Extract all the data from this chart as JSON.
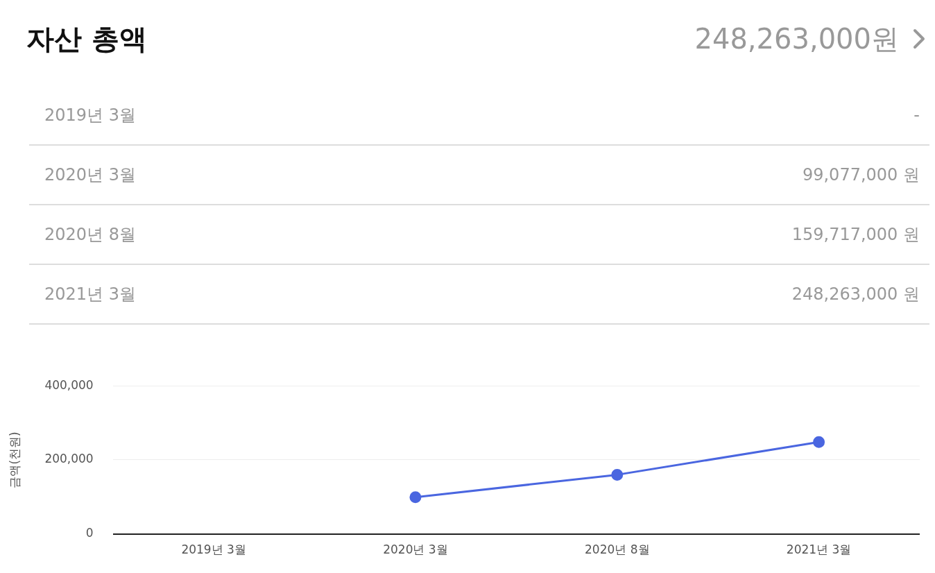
{
  "chart_data": [
    {
      "type": "other",
      "title": "자산 총액",
      "subtitle": "248,263,000원",
      "categories": [
        "2019년 3월",
        "2020년 3월",
        "2020년 8월",
        "2021년 3월"
      ],
      "series": [
        {
          "values": [
            null,
            99077000,
            159717000,
            248263000
          ],
          "value_labels": [
            "-",
            "99,077,000 원",
            "159,717,000 원",
            "248,263,000 원"
          ]
        }
      ]
    },
    {
      "type": "line",
      "ylabel": "금액(천원)",
      "categories": [
        "2019년 3월",
        "2020년 3월",
        "2020년 8월",
        "2021년 3월"
      ],
      "series": [
        {
          "color": "#4a66e0",
          "values": [
            null,
            99077,
            159717,
            248263
          ]
        }
      ],
      "ylim": [
        0,
        400000
      ],
      "yticks": [
        0,
        {
          "value": 200000,
          "label": "200,000"
        },
        {
          "value": 400000,
          "label": "400,000"
        }
      ],
      "grid": "y",
      "marker": "circle",
      "line_style": "solid"
    }
  ]
}
